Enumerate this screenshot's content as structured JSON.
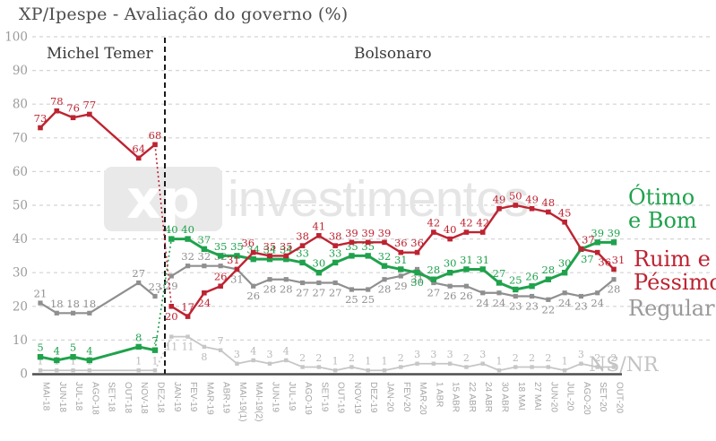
{
  "title": "XP/Ipespe - Avaliação do governo (%)",
  "annotations": {
    "left_period": "Michel Temer",
    "right_period": "Bolsonaro"
  },
  "watermark": {
    "logo_text": "xp",
    "text": "investimentos"
  },
  "end_labels": {
    "otimo": "Ótimo\ne Bom",
    "ruim": "Ruim e\nPéssimo",
    "regular": "Regular",
    "nsnr": "NS/NR"
  },
  "colors": {
    "otimo": "#1fa24c",
    "ruim": "#bd2331",
    "regular": "#8f8f8f",
    "nsnr": "#c6c6c6",
    "grid": "#d4d4d4",
    "axis": "#4f4f4f",
    "divider": "#1a1a1a",
    "tick_text": "#9b9b9b",
    "xlabel_text": "#a5a5a5"
  },
  "chart_data": {
    "type": "line",
    "title": "XP/Ipespe - Avaliação do governo (%)",
    "ylim": [
      0,
      100
    ],
    "yticks": [
      0,
      10,
      20,
      30,
      40,
      50,
      60,
      70,
      80,
      90,
      100
    ],
    "grid": true,
    "legend_position": "right",
    "categories": [
      "MAI-18",
      "JUN-18",
      "JUL-18",
      "AGO-18",
      "SET-18",
      "OUT-18",
      "NOV-18",
      "DEZ-18",
      "JAN-19",
      "FEV-19",
      "MAR-19",
      "ABR-19",
      "MAI-19(1)",
      "MAI-19(2)",
      "JUN-19",
      "JUL-19",
      "AGO-19",
      "SET-19",
      "OUT-19",
      "NOV-19",
      "DEZ-19",
      "JAN-20",
      "FEV-20",
      "MAR-20",
      "1 ABR",
      "15 ABR",
      "22 ABR",
      "24 ABR",
      "30 ABR",
      "18 MAI",
      "27 MAI",
      "JUN-20",
      "JUL-20",
      "AGO-20",
      "SET-20",
      "OUT-20"
    ],
    "series": [
      {
        "name": "Ótimo e Bom",
        "color": "#1fa24c",
        "values": [
          5,
          4,
          5,
          4,
          null,
          null,
          8,
          7,
          40,
          40,
          37,
          35,
          35,
          34,
          34,
          34,
          33,
          30,
          33,
          35,
          35,
          32,
          31,
          30,
          28,
          30,
          31,
          31,
          27,
          25,
          26,
          28,
          30,
          37,
          39,
          39
        ]
      },
      {
        "name": "Ruim e Péssimo",
        "color": "#bd2331",
        "values": [
          73,
          78,
          76,
          77,
          null,
          null,
          64,
          68,
          20,
          17,
          24,
          26,
          31,
          36,
          35,
          35,
          38,
          41,
          38,
          39,
          39,
          39,
          36,
          36,
          42,
          40,
          42,
          42,
          49,
          50,
          49,
          48,
          45,
          37,
          36,
          31
        ]
      },
      {
        "name": "Regular",
        "color": "#8f8f8f",
        "values": [
          21,
          18,
          18,
          18,
          null,
          null,
          27,
          23,
          29,
          32,
          32,
          32,
          31,
          26,
          28,
          28,
          27,
          27,
          27,
          25,
          25,
          28,
          29,
          31,
          27,
          26,
          26,
          24,
          24,
          23,
          23,
          22,
          24,
          23,
          24,
          28
        ]
      },
      {
        "name": "NS/NR",
        "color": "#c6c6c6",
        "values": [
          1,
          1,
          1,
          1,
          null,
          null,
          1,
          1,
          11,
          11,
          8,
          7,
          3,
          4,
          3,
          4,
          2,
          2,
          1,
          2,
          1,
          1,
          2,
          3,
          3,
          3,
          2,
          3,
          1,
          2,
          2,
          2,
          1,
          3,
          2,
          2
        ]
      }
    ]
  }
}
